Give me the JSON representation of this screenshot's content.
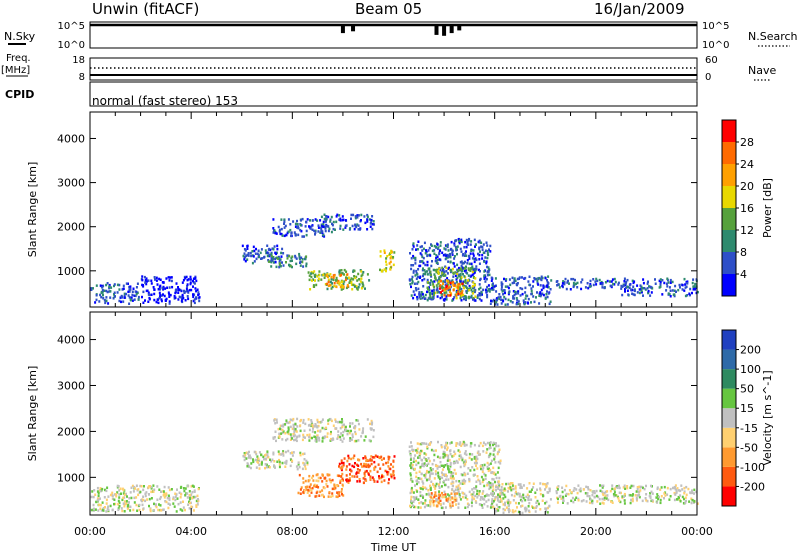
{
  "header": {
    "site": "Unwin (fitACF)",
    "beam": "Beam 05",
    "date": "16/Jan/2009"
  },
  "nsky": {
    "label": "N.Sky",
    "ticks": [
      "10^5",
      "10^0"
    ],
    "right_label": "N.Search",
    "right_ticks": [
      "10^5",
      "10^0"
    ],
    "dips": [
      {
        "t": 10.0,
        "depth": 0.45
      },
      {
        "t": 10.4,
        "depth": 0.35
      },
      {
        "t": 13.7,
        "depth": 0.55
      },
      {
        "t": 14.0,
        "depth": 0.6
      },
      {
        "t": 14.3,
        "depth": 0.45
      },
      {
        "t": 14.6,
        "depth": 0.3
      }
    ]
  },
  "freq": {
    "label": "Freq.",
    "unit": "[MHz]",
    "ticks": [
      "18",
      "8"
    ],
    "right_label": "Nave",
    "right_ticks": [
      "60",
      "0"
    ],
    "cpid_label": "CPID",
    "cpid_text": "normal (fast stereo) 153"
  },
  "chart_data": [
    {
      "type": "heatmap",
      "name": "power",
      "ylabel": "Slant Range [km]",
      "yticks": [
        1000,
        2000,
        3000,
        4000
      ],
      "ylim": [
        180,
        4600
      ],
      "xlim": [
        0,
        24
      ],
      "colorbar": {
        "label": "Power [dB]",
        "ticks": [
          "4",
          "8",
          "12",
          "16",
          "20",
          "24",
          "28"
        ],
        "colors": [
          "#0000ff",
          "#2e4fc8",
          "#2e8a6e",
          "#56a13c",
          "#e8d800",
          "#ffa000",
          "#ff6a00",
          "#ff0000"
        ]
      },
      "regions": [
        {
          "t0": 0.0,
          "t1": 1.9,
          "r0": 280,
          "r1": 750,
          "level": 1
        },
        {
          "t0": 2.0,
          "t1": 4.3,
          "r0": 280,
          "r1": 900,
          "level": 0
        },
        {
          "t0": 6.0,
          "t1": 7.6,
          "r0": 1200,
          "r1": 1600,
          "level": 1
        },
        {
          "t0": 7.0,
          "t1": 8.6,
          "r0": 1100,
          "r1": 1450,
          "level": 2
        },
        {
          "t0": 7.2,
          "t1": 9.6,
          "r0": 1800,
          "r1": 2200,
          "level": 1
        },
        {
          "t0": 9.0,
          "t1": 11.2,
          "r0": 1950,
          "r1": 2300,
          "level": 1
        },
        {
          "t0": 8.6,
          "t1": 11.0,
          "r0": 600,
          "r1": 1050,
          "level": 3
        },
        {
          "t0": 9.3,
          "t1": 10.2,
          "r0": 650,
          "r1": 950,
          "level": 5
        },
        {
          "t0": 11.4,
          "t1": 12.0,
          "r0": 1000,
          "r1": 1500,
          "level": 4
        },
        {
          "t0": 12.6,
          "t1": 15.8,
          "r0": 350,
          "r1": 1750,
          "level": 1
        },
        {
          "t0": 13.3,
          "t1": 15.2,
          "r0": 400,
          "r1": 1100,
          "level": 3
        },
        {
          "t0": 13.8,
          "t1": 14.8,
          "r0": 450,
          "r1": 800,
          "level": 6
        },
        {
          "t0": 15.8,
          "t1": 18.2,
          "r0": 250,
          "r1": 900,
          "level": 1
        },
        {
          "t0": 18.4,
          "t1": 21.0,
          "r0": 600,
          "r1": 850,
          "level": 1
        },
        {
          "t0": 21.0,
          "t1": 24.0,
          "r0": 450,
          "r1": 850,
          "level": 1
        }
      ]
    },
    {
      "type": "heatmap",
      "name": "velocity",
      "xlabel": "Time UT",
      "ylabel": "Slant Range [km]",
      "yticks": [
        1000,
        2000,
        3000,
        4000
      ],
      "ylim": [
        180,
        4600
      ],
      "xlim": [
        0,
        24
      ],
      "xticks": [
        "00:00",
        "04:00",
        "08:00",
        "12:00",
        "16:00",
        "20:00",
        "00:00"
      ],
      "colorbar": {
        "label": "Velocity [m s^-1]",
        "ticks": [
          "200",
          "100",
          "50",
          "15",
          "-15",
          "-50",
          "-100",
          "-200"
        ],
        "colors": [
          "#2040c0",
          "#2e6aa8",
          "#2e8a60",
          "#66c640",
          "#c0c0c0",
          "#ffd070",
          "#ff9a30",
          "#ff5a10",
          "#ff0000"
        ]
      },
      "regions": [
        {
          "t0": 0.0,
          "t1": 4.3,
          "r0": 280,
          "r1": 850,
          "level": 4
        },
        {
          "t0": 6.0,
          "t1": 8.6,
          "r0": 1200,
          "r1": 1600,
          "level": 4
        },
        {
          "t0": 7.2,
          "t1": 11.2,
          "r0": 1800,
          "r1": 2300,
          "level": 4
        },
        {
          "t0": 8.2,
          "t1": 10.0,
          "r0": 600,
          "r1": 1100,
          "level": 6
        },
        {
          "t0": 9.8,
          "t1": 12.0,
          "r0": 900,
          "r1": 1500,
          "level": 7
        },
        {
          "t0": 12.6,
          "t1": 16.2,
          "r0": 350,
          "r1": 1800,
          "level": 4
        },
        {
          "t0": 13.4,
          "t1": 14.6,
          "r0": 400,
          "r1": 700,
          "level": 6
        },
        {
          "t0": 15.8,
          "t1": 18.2,
          "r0": 250,
          "r1": 900,
          "level": 4
        },
        {
          "t0": 18.4,
          "t1": 24.0,
          "r0": 450,
          "r1": 850,
          "level": 4
        }
      ]
    }
  ]
}
